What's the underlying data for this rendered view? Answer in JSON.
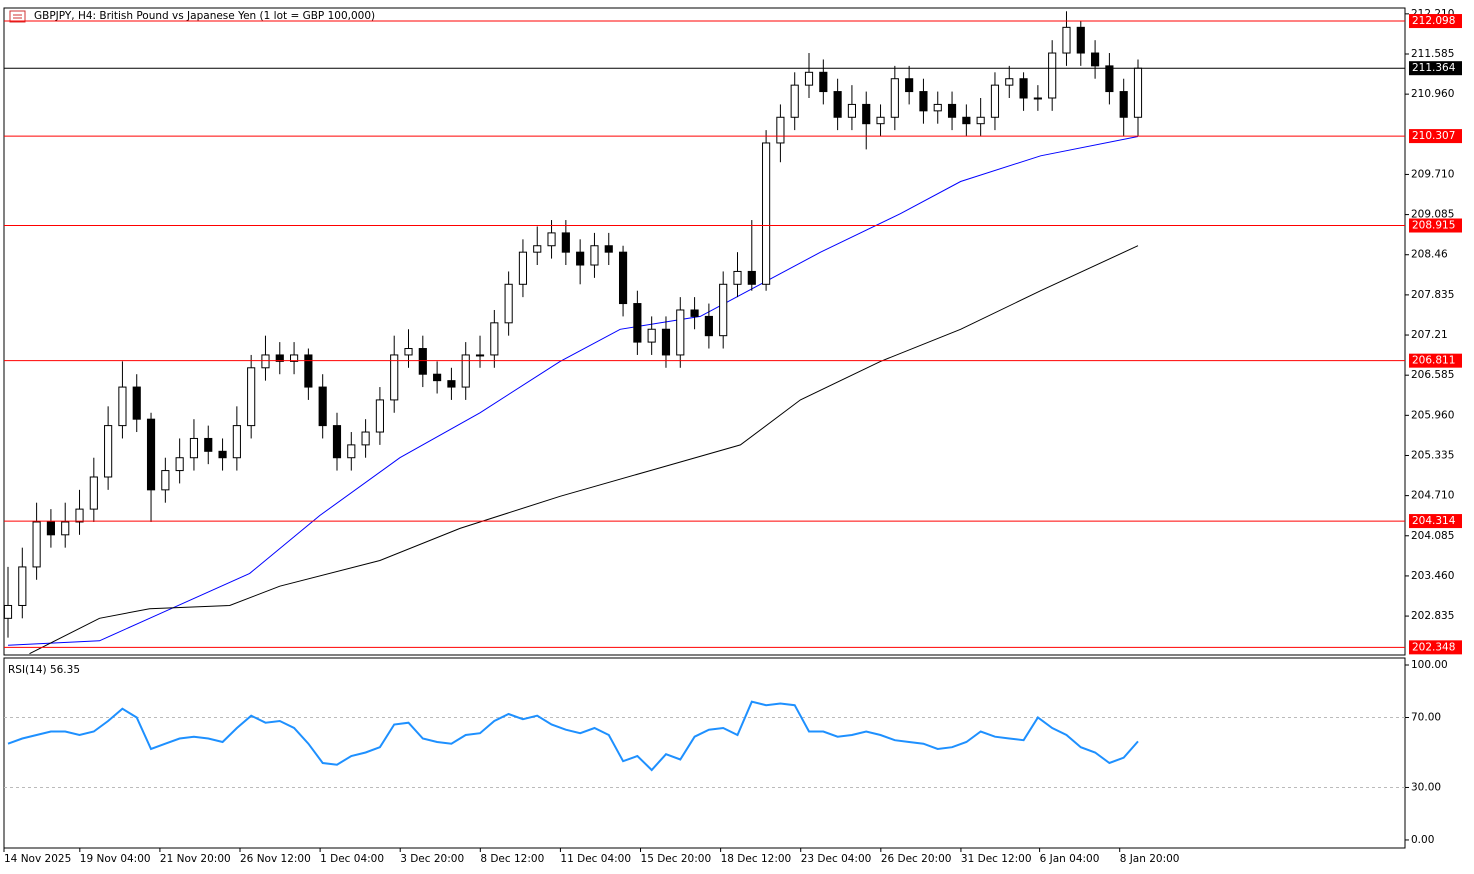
{
  "chart_data": [
    {
      "type": "candlestick",
      "title": "GBPJPY, H4:  British Pound vs Japanese Yen (1 lot = GBP 100,000)",
      "candles": [
        [
          202.8,
          203.6,
          202.5,
          203.0
        ],
        [
          203.0,
          203.9,
          202.8,
          203.6
        ],
        [
          203.6,
          204.6,
          203.4,
          204.3
        ],
        [
          204.3,
          204.5,
          203.9,
          204.1
        ],
        [
          204.1,
          204.6,
          203.9,
          204.3
        ],
        [
          204.3,
          204.8,
          204.1,
          204.5
        ],
        [
          204.5,
          205.3,
          204.3,
          205.0
        ],
        [
          205.0,
          206.1,
          204.8,
          205.8
        ],
        [
          205.8,
          206.8,
          205.6,
          206.4
        ],
        [
          206.4,
          206.6,
          205.7,
          205.9
        ],
        [
          205.9,
          206.0,
          204.3,
          204.8
        ],
        [
          204.8,
          205.3,
          204.6,
          205.1
        ],
        [
          205.1,
          205.6,
          204.9,
          205.3
        ],
        [
          205.3,
          205.9,
          205.1,
          205.6
        ],
        [
          205.6,
          205.8,
          205.2,
          205.4
        ],
        [
          205.4,
          205.6,
          205.1,
          205.3
        ],
        [
          205.3,
          206.1,
          205.1,
          205.8
        ],
        [
          205.8,
          206.9,
          205.6,
          206.7
        ],
        [
          206.7,
          207.2,
          206.5,
          206.9
        ],
        [
          206.9,
          207.1,
          206.6,
          206.8
        ],
        [
          206.8,
          207.1,
          206.6,
          206.9
        ],
        [
          206.9,
          207.0,
          206.2,
          206.4
        ],
        [
          206.4,
          206.6,
          205.6,
          205.8
        ],
        [
          205.8,
          206.0,
          205.1,
          205.3
        ],
        [
          205.3,
          205.7,
          205.1,
          205.5
        ],
        [
          205.5,
          205.9,
          205.3,
          205.7
        ],
        [
          205.7,
          206.4,
          205.5,
          206.2
        ],
        [
          206.2,
          207.2,
          206.0,
          206.9
        ],
        [
          206.9,
          207.3,
          206.7,
          207.0
        ],
        [
          207.0,
          207.2,
          206.4,
          206.6
        ],
        [
          206.6,
          206.8,
          206.3,
          206.5
        ],
        [
          206.5,
          206.7,
          206.2,
          206.4
        ],
        [
          206.4,
          207.1,
          206.2,
          206.9
        ],
        [
          206.9,
          207.2,
          206.7,
          206.9
        ],
        [
          206.9,
          207.6,
          206.7,
          207.4
        ],
        [
          207.4,
          208.2,
          207.2,
          208.0
        ],
        [
          208.0,
          208.7,
          207.8,
          208.5
        ],
        [
          208.5,
          208.9,
          208.3,
          208.6
        ],
        [
          208.6,
          209.0,
          208.4,
          208.8
        ],
        [
          208.8,
          209.0,
          208.3,
          208.5
        ],
        [
          208.5,
          208.7,
          208.0,
          208.3
        ],
        [
          208.3,
          208.8,
          208.1,
          208.6
        ],
        [
          208.6,
          208.8,
          208.3,
          208.5
        ],
        [
          208.5,
          208.6,
          207.5,
          207.7
        ],
        [
          207.7,
          207.9,
          206.9,
          207.1
        ],
        [
          207.1,
          207.5,
          206.9,
          207.3
        ],
        [
          207.3,
          207.5,
          206.7,
          206.9
        ],
        [
          206.9,
          207.8,
          206.7,
          207.6
        ],
        [
          207.6,
          207.8,
          207.3,
          207.5
        ],
        [
          207.5,
          207.7,
          207.0,
          207.2
        ],
        [
          207.2,
          208.2,
          207.0,
          208.0
        ],
        [
          208.0,
          208.5,
          207.8,
          208.2
        ],
        [
          208.2,
          209.0,
          207.9,
          208.0
        ],
        [
          208.0,
          210.4,
          207.9,
          210.2
        ],
        [
          210.2,
          210.8,
          209.9,
          210.6
        ],
        [
          210.6,
          211.3,
          210.4,
          211.1
        ],
        [
          211.1,
          211.6,
          210.9,
          211.3
        ],
        [
          211.3,
          211.5,
          210.8,
          211.0
        ],
        [
          211.0,
          211.2,
          210.4,
          210.6
        ],
        [
          210.6,
          211.1,
          210.4,
          210.8
        ],
        [
          210.8,
          211.0,
          210.1,
          210.5
        ],
        [
          210.5,
          210.8,
          210.3,
          210.6
        ],
        [
          210.6,
          211.4,
          210.4,
          211.2
        ],
        [
          211.2,
          211.4,
          210.8,
          211.0
        ],
        [
          211.0,
          211.2,
          210.5,
          210.7
        ],
        [
          210.7,
          211.0,
          210.5,
          210.8
        ],
        [
          210.8,
          211.0,
          210.4,
          210.6
        ],
        [
          210.6,
          210.8,
          210.3,
          210.5
        ],
        [
          210.5,
          210.9,
          210.3,
          210.6
        ],
        [
          210.6,
          211.3,
          210.4,
          211.1
        ],
        [
          211.1,
          211.4,
          210.9,
          211.2
        ],
        [
          211.2,
          211.3,
          210.7,
          210.9
        ],
        [
          210.9,
          211.1,
          210.7,
          210.9
        ],
        [
          210.9,
          211.8,
          210.7,
          211.6
        ],
        [
          211.6,
          212.25,
          211.4,
          212.0
        ],
        [
          212.0,
          212.1,
          211.4,
          211.6
        ],
        [
          211.6,
          211.8,
          211.2,
          211.4
        ],
        [
          211.4,
          211.6,
          210.8,
          211.0
        ],
        [
          211.0,
          211.2,
          210.3,
          210.6
        ],
        [
          210.6,
          211.5,
          210.3,
          211.364
        ]
      ],
      "moving_averages": [
        {
          "color": "#0000ff",
          "x": [
            0,
            6.4,
            9.9,
            16.9,
            21.8,
            27.4,
            33,
            38.6,
            42.8,
            48.4,
            52.6,
            56.8,
            62.4,
            66.6,
            72.2,
            79
          ],
          "values": [
            202.38,
            202.45,
            202.8,
            203.5,
            204.4,
            205.3,
            206.0,
            206.8,
            207.3,
            207.5,
            208.0,
            208.5,
            209.1,
            209.6,
            210.0,
            210.3
          ]
        },
        {
          "color": "#000000",
          "x": [
            1.5,
            6.4,
            9.9,
            15.5,
            19,
            26,
            31.6,
            38.6,
            44.9,
            51.2,
            55.4,
            61,
            66.6,
            72.2,
            79
          ],
          "values": [
            202.25,
            202.8,
            202.95,
            203.0,
            203.3,
            203.7,
            204.2,
            204.7,
            205.1,
            205.5,
            206.2,
            206.8,
            207.3,
            207.9,
            208.6
          ]
        }
      ],
      "levels": [
        212.098,
        210.307,
        208.915,
        206.811,
        204.314,
        202.348
      ],
      "level_color": "#ff0000",
      "last_price": 211.364,
      "ylim": [
        202.229,
        212.301
      ],
      "yticks": [
        {
          "value": 212.21,
          "label": "212.210"
        },
        211.585,
        {
          "value": 210.96,
          "label": "210.960"
        },
        {
          "value": 209.71,
          "label": "209.710"
        },
        209.085,
        208.46,
        207.835,
        207.21,
        206.585,
        {
          "value": 205.96,
          "label": "205.960"
        },
        205.335,
        {
          "value": 204.71,
          "label": "204.710"
        },
        204.085,
        {
          "value": 203.46,
          "label": "203.460"
        },
        202.835
      ],
      "xlim": [
        0,
        79
      ],
      "xticks": [
        {
          "value": 0,
          "label": "14 Nov 2025"
        },
        {
          "value": 5.3,
          "label": "19 Nov 04:00"
        },
        {
          "value": 10.9,
          "label": "21 Nov 20:00"
        },
        {
          "value": 16.5,
          "label": "26 Nov 12:00"
        },
        {
          "value": 22.1,
          "label": "1 Dec 04:00"
        },
        {
          "value": 27.7,
          "label": "3 Dec 20:00"
        },
        {
          "value": 33.3,
          "label": "8 Dec 12:00"
        },
        {
          "value": 38.9,
          "label": "11 Dec 04:00"
        },
        {
          "value": 44.5,
          "label": "15 Dec 20:00"
        },
        {
          "value": 50.1,
          "label": "18 Dec 12:00"
        },
        {
          "value": 55.7,
          "label": "23 Dec 04:00"
        },
        {
          "value": 61.3,
          "label": "26 Dec 20:00"
        },
        {
          "value": 66.9,
          "label": "31 Dec 12:00"
        },
        {
          "value": 72.4,
          "label": "6 Jan 04:00"
        },
        {
          "value": 78,
          "label": "8 Jan 20:00"
        }
      ]
    },
    {
      "type": "line",
      "title": "RSI(14) 56.35",
      "color": "#1e90ff",
      "values": [
        55,
        58,
        60,
        62,
        62,
        60,
        62,
        68,
        75,
        70,
        52,
        55,
        58,
        59,
        58,
        56,
        64,
        71,
        67,
        68,
        64,
        55,
        44,
        43,
        48,
        50,
        53,
        66,
        67,
        58,
        56,
        55,
        60,
        61,
        68,
        72,
        69,
        71,
        66,
        63,
        61,
        64,
        60,
        45,
        48,
        40,
        49,
        46,
        59,
        63,
        64,
        60,
        79,
        77,
        78,
        77,
        62,
        62,
        59,
        60,
        62,
        60,
        57,
        56,
        55,
        52,
        53,
        56,
        62,
        59,
        58,
        57,
        70,
        64,
        60,
        53,
        50,
        44,
        47,
        56.35
      ],
      "levels": [
        70,
        30
      ],
      "ylim": [
        -4.6,
        104
      ],
      "yticks": [
        {
          "value": 100,
          "label": "100.00"
        },
        {
          "value": 70,
          "label": "70.00"
        },
        {
          "value": 30,
          "label": "30.00"
        },
        {
          "value": 0,
          "label": "0.00"
        }
      ]
    }
  ]
}
